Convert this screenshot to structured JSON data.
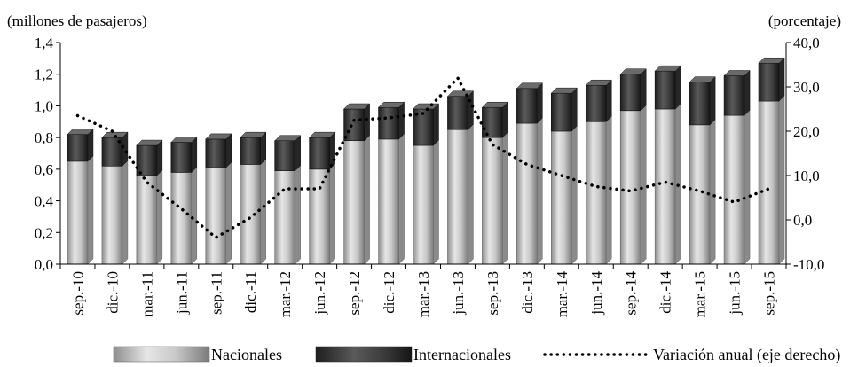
{
  "chart_data": {
    "type": "bar",
    "stacked": true,
    "left_axis_label": "(millones de pasajeros)",
    "right_axis_label": "(porcentaje)",
    "categories": [
      "sep.-10",
      "dic.-10",
      "mar.-11",
      "jun.-11",
      "sep.-11",
      "dic.-11",
      "mar.-12",
      "jun.-12",
      "sep.-12",
      "dic.-12",
      "mar.-13",
      "jun.-13",
      "sep.-13",
      "dic.-13",
      "mar.-14",
      "jun.-14",
      "sep.-14",
      "dic.-14",
      "mar.-15",
      "jun.-15",
      "sep.-15"
    ],
    "series": [
      {
        "name": "Nacionales",
        "axis": "left",
        "kind": "bar",
        "color": "#b8b8b8",
        "values": [
          0.65,
          0.62,
          0.56,
          0.58,
          0.61,
          0.63,
          0.59,
          0.6,
          0.78,
          0.79,
          0.75,
          0.85,
          0.8,
          0.89,
          0.84,
          0.9,
          0.97,
          0.98,
          0.88,
          0.94,
          1.03
        ]
      },
      {
        "name": "Internacionales",
        "axis": "left",
        "kind": "bar",
        "color": "#3c3c3c",
        "values": [
          0.17,
          0.18,
          0.19,
          0.19,
          0.18,
          0.17,
          0.19,
          0.2,
          0.2,
          0.2,
          0.23,
          0.21,
          0.19,
          0.22,
          0.24,
          0.23,
          0.23,
          0.24,
          0.27,
          0.25,
          0.24
        ]
      },
      {
        "name": "Variación anual (eje derecho)",
        "axis": "right",
        "kind": "line",
        "style": "dotted",
        "color": "#000000",
        "values": [
          23.5,
          20.0,
          8.5,
          2.5,
          -4.0,
          0.5,
          7.0,
          7.0,
          22.5,
          23.0,
          24.0,
          32.0,
          17.0,
          12.5,
          10.0,
          7.5,
          6.5,
          8.5,
          6.5,
          4.0,
          7.0
        ]
      }
    ],
    "y_left": {
      "min": 0,
      "max": 1.4,
      "step": 0.2,
      "ticks": [
        "0,0",
        "0,2",
        "0,4",
        "0,6",
        "0,8",
        "1,0",
        "1,2",
        "1,4"
      ]
    },
    "y_right": {
      "min": -10,
      "max": 40,
      "step": 10,
      "ticks": [
        "-10,0",
        "0,0",
        "10,0",
        "20,0",
        "30,0",
        "40,0"
      ]
    },
    "grid": false,
    "legend_position": "bottom"
  }
}
